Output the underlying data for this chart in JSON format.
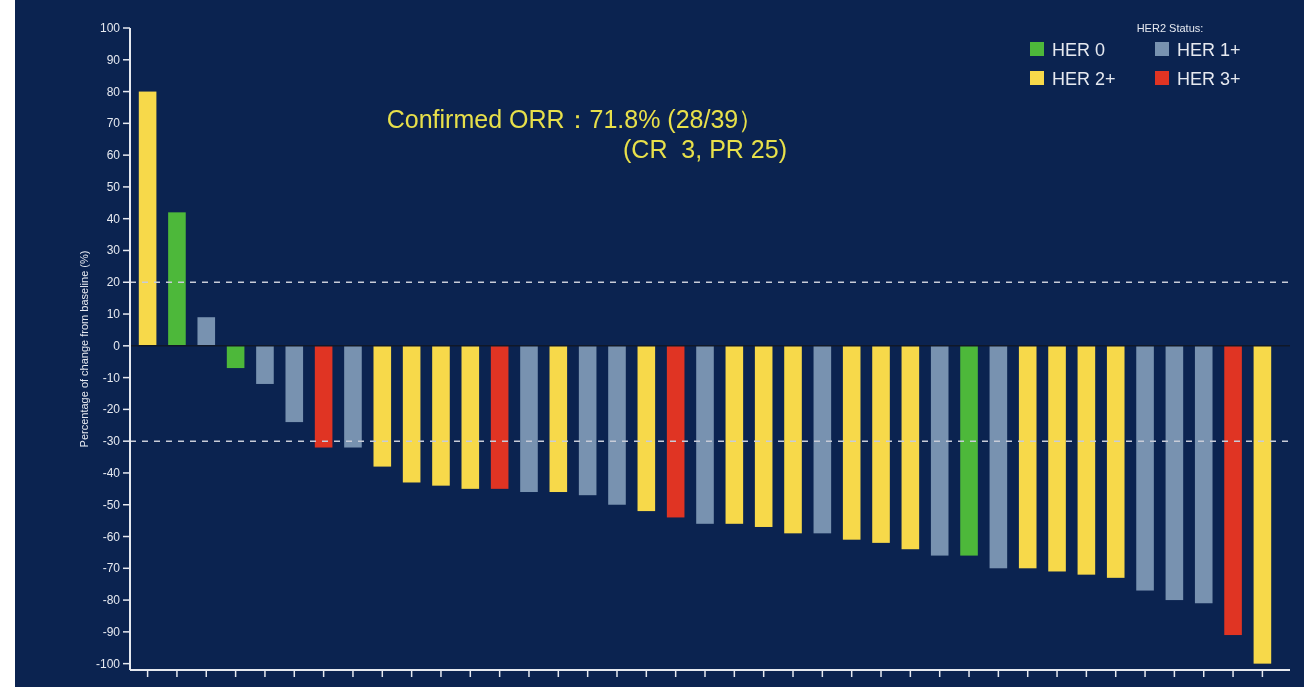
{
  "chart_data": {
    "type": "bar",
    "ylabel": "Percentage of change from baseline (%)",
    "legend_title": "HER2 Status:",
    "annotations": [
      "Confirmed ORR：71.8% (28/39）\n(CR  3, PR 25)"
    ],
    "categories": [
      null,
      null,
      null,
      null,
      null,
      null,
      null,
      null,
      null,
      null,
      null,
      null,
      null,
      null,
      null,
      null,
      null,
      null,
      null,
      null,
      null,
      null,
      null,
      null,
      null,
      null,
      null,
      null,
      null,
      null,
      null,
      null,
      null,
      null,
      null,
      null,
      null,
      null,
      null
    ],
    "series": [
      {
        "name": "HER 0",
        "color": "#4db83a",
        "values": [
          null,
          42,
          null,
          -7,
          null,
          null,
          null,
          null,
          null,
          null,
          null,
          null,
          null,
          null,
          null,
          null,
          null,
          null,
          null,
          null,
          null,
          null,
          null,
          null,
          null,
          null,
          null,
          null,
          -66,
          null,
          null,
          null,
          null,
          null,
          null,
          null,
          null,
          null,
          null
        ]
      },
      {
        "name": "HER 1+",
        "color": "#7892b0",
        "values": [
          null,
          null,
          9,
          null,
          -12,
          -24,
          null,
          -32,
          null,
          null,
          null,
          null,
          null,
          -46,
          null,
          -47,
          -50,
          null,
          null,
          -56,
          null,
          null,
          null,
          -59,
          null,
          null,
          null,
          -66,
          null,
          -70,
          null,
          null,
          null,
          null,
          -77,
          -80,
          -81,
          null,
          null
        ]
      },
      {
        "name": "HER 2+",
        "color": "#f7d94a",
        "values": [
          80,
          null,
          null,
          null,
          null,
          null,
          null,
          null,
          -38,
          -43,
          -44,
          -45,
          null,
          null,
          -46,
          null,
          null,
          -52,
          null,
          null,
          -56,
          -57,
          -59,
          null,
          -61,
          -62,
          -64,
          null,
          null,
          null,
          -70,
          -71,
          -72,
          -73,
          null,
          null,
          null,
          null,
          -100
        ]
      },
      {
        "name": "HER 3+",
        "color": "#e03423",
        "values": [
          null,
          null,
          null,
          null,
          null,
          null,
          -32,
          null,
          null,
          null,
          null,
          null,
          -45,
          null,
          null,
          null,
          null,
          null,
          -54,
          null,
          null,
          null,
          null,
          null,
          null,
          null,
          null,
          null,
          null,
          null,
          null,
          null,
          null,
          null,
          null,
          null,
          null,
          -91,
          null
        ]
      }
    ],
    "ylim": [
      -102,
      100
    ],
    "yticks": [
      -100,
      -90,
      -80,
      -70,
      -60,
      -50,
      -40,
      -30,
      -20,
      -10,
      0,
      10,
      20,
      30,
      40,
      50,
      60,
      70,
      80,
      90,
      100
    ],
    "ref_lines": [
      {
        "axis": "y",
        "value": 20,
        "color": "#c8ccd8",
        "line_style": "dashed"
      },
      {
        "axis": "y",
        "value": -30,
        "color": "#c8ccd8",
        "line_style": "dashed"
      },
      {
        "axis": "y",
        "value": 0,
        "color": "#101828",
        "line_style": "solid"
      }
    ],
    "legend": "top right"
  }
}
